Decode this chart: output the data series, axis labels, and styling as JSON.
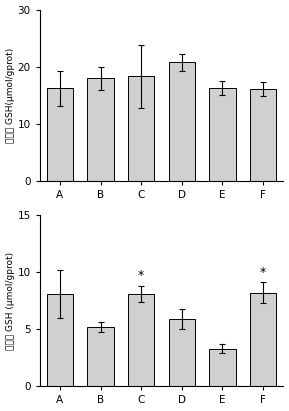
{
  "top": {
    "categories": [
      "A",
      "B",
      "C",
      "D",
      "E",
      "F"
    ],
    "values": [
      16.2,
      18.0,
      18.3,
      20.8,
      16.3,
      16.1
    ],
    "errors": [
      3.0,
      2.0,
      5.5,
      1.5,
      1.2,
      1.3
    ],
    "ylabel": "肝脏总 GSH(μmol/gprot)",
    "ylim": [
      0,
      30
    ],
    "yticks": [
      0,
      10,
      20,
      30
    ],
    "bar_color": "#d0d0d0",
    "bar_edgecolor": "#000000",
    "asterisks": []
  },
  "bottom": {
    "categories": [
      "A",
      "B",
      "C",
      "D",
      "E",
      "F"
    ],
    "values": [
      8.1,
      5.2,
      8.1,
      5.9,
      3.3,
      8.2
    ],
    "errors": [
      2.1,
      0.4,
      0.7,
      0.9,
      0.4,
      0.9
    ],
    "ylabel": "线粒体 GSH (μmol/gprot)",
    "ylim": [
      0,
      15
    ],
    "yticks": [
      0,
      5,
      10,
      15
    ],
    "bar_color": "#d0d0d0",
    "bar_edgecolor": "#000000",
    "asterisks": [
      "C",
      "F"
    ]
  }
}
